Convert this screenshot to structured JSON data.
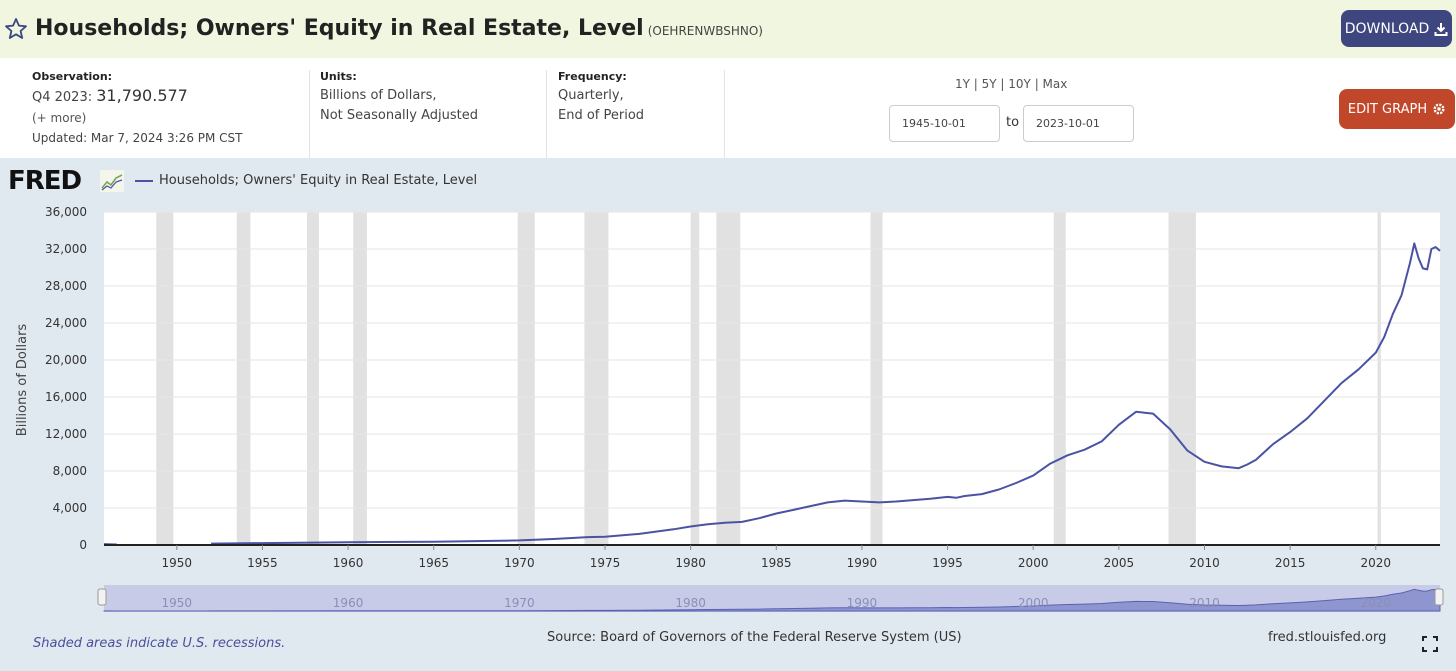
{
  "header": {
    "title": "Households; Owners' Equity in Real Estate, Level",
    "series_id": "(OEHRENWBSHNO)",
    "download_label": "DOWNLOAD"
  },
  "meta": {
    "observation_label": "Observation:",
    "observation_period": "Q4 2023:",
    "observation_value": "31,790.577",
    "observation_more": "(+ more)",
    "updated": "Updated: Mar 7, 2024 3:26 PM CST",
    "units_label": "Units:",
    "units_line1": "Billions of Dollars,",
    "units_line2": "Not Seasonally Adjusted",
    "frequency_label": "Frequency:",
    "frequency_line1": "Quarterly,",
    "frequency_line2": "End of Period",
    "range_links": "1Y | 5Y | 10Y | Max",
    "start_date": "1945-10-01",
    "to_label": "to",
    "end_date": "2023-10-01",
    "edit_graph_label": "EDIT GRAPH"
  },
  "logo": {
    "text": "FRED"
  },
  "footer": {
    "recession_note": "Shaded areas indicate U.S. recessions.",
    "source": "Source: Board of Governors of the Federal Reserve System (US)",
    "url": "fred.stlouisfed.org"
  },
  "colors": {
    "series": "#4a53a3",
    "recession": "#e1e1e1",
    "download": "#3e4680",
    "edit": "#c0472a"
  },
  "chart_data": {
    "type": "line",
    "title": "",
    "ylabel": "Billions of Dollars",
    "xlabel": "",
    "xlim": [
      1945.75,
      2023.75
    ],
    "ylim": [
      0,
      36000
    ],
    "y_ticks": [
      0,
      4000,
      8000,
      12000,
      16000,
      20000,
      24000,
      28000,
      32000,
      36000
    ],
    "y_tick_labels": [
      "0",
      "4,000",
      "8,000",
      "12,000",
      "16,000",
      "20,000",
      "24,000",
      "28,000",
      "32,000",
      "36,000"
    ],
    "x_ticks": [
      1950,
      1955,
      1960,
      1965,
      1970,
      1975,
      1980,
      1985,
      1990,
      1995,
      2000,
      2005,
      2010,
      2015,
      2020
    ],
    "navigator_ticks": [
      1950,
      1960,
      1970,
      1980,
      1990,
      2000,
      2010,
      2020
    ],
    "legend": "top-left",
    "grid": true,
    "recessions": [
      [
        1948.8,
        1949.8
      ],
      [
        1953.5,
        1954.3
      ],
      [
        1957.6,
        1958.3
      ],
      [
        1960.3,
        1961.1
      ],
      [
        1969.9,
        1970.9
      ],
      [
        1973.8,
        1975.2
      ],
      [
        1980.0,
        1980.5
      ],
      [
        1981.5,
        1982.9
      ],
      [
        1990.5,
        1991.2
      ],
      [
        2001.2,
        2001.9
      ],
      [
        2007.9,
        2009.5
      ],
      [
        2020.1,
        2020.3
      ]
    ],
    "series": [
      {
        "name": "Households; Owners' Equity in Real Estate, Level",
        "x": [
          1945.75,
          1946.5,
          1951.75,
          1952,
          1955,
          1960,
          1965,
          1970,
          1972,
          1974,
          1975,
          1977,
          1979,
          1980,
          1981,
          1982,
          1983,
          1984,
          1985,
          1986,
          1987,
          1988,
          1989,
          1990,
          1991,
          1992,
          1993,
          1994,
          1995,
          1995.5,
          1996,
          1997,
          1998,
          1999,
          2000,
          2001,
          2002,
          2003,
          2004,
          2005,
          2006,
          2006.5,
          2007,
          2008,
          2009,
          2010,
          2011,
          2012,
          2012.5,
          2013,
          2014,
          2015,
          2016,
          2017,
          2018,
          2019,
          2020,
          2020.5,
          2021,
          2021.5,
          2022,
          2022.25,
          2022.5,
          2022.75,
          2023,
          2023.25,
          2023.5,
          2023.75
        ],
        "values": [
          100,
          50,
          null,
          150,
          200,
          300,
          350,
          500,
          650,
          850,
          900,
          1200,
          1700,
          2000,
          2250,
          2400,
          2500,
          2900,
          3400,
          3800,
          4200,
          4600,
          4800,
          4700,
          4600,
          4700,
          4850,
          5000,
          5200,
          5100,
          5300,
          5500,
          6000,
          6700,
          7500,
          8800,
          9700,
          10300,
          11200,
          13000,
          14400,
          14300,
          14200,
          12500,
          10200,
          9000,
          8500,
          8300,
          8700,
          9200,
          10900,
          12200,
          13700,
          15600,
          17500,
          19000,
          20800,
          22500,
          25000,
          27000,
          30500,
          32600,
          31000,
          29900,
          29800,
          32000,
          32200,
          31790.577
        ]
      }
    ]
  }
}
